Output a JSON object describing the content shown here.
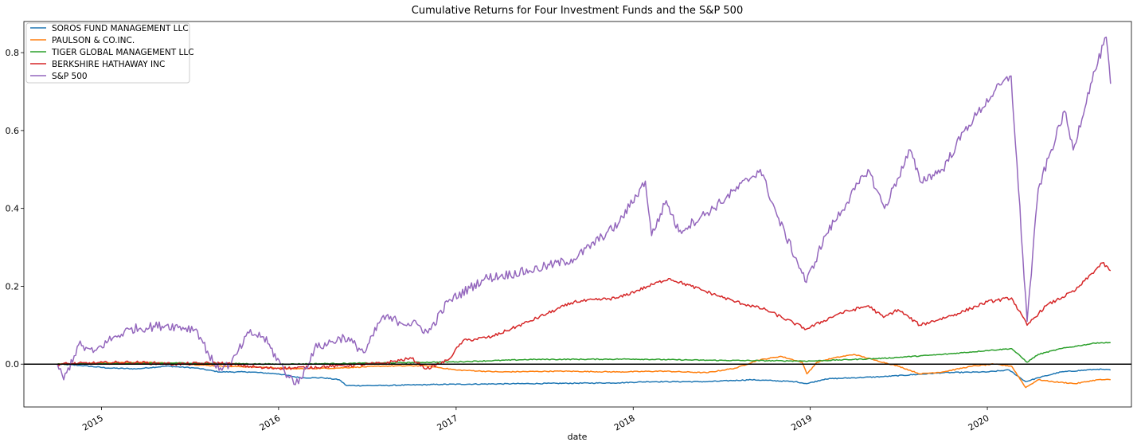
{
  "chart_data": {
    "type": "line",
    "title": "Cumulative Returns for Four Investment Funds and the S&P 500",
    "xlabel": "date",
    "ylabel": "",
    "xlim": [
      "2014-07-25",
      "2020-10-24"
    ],
    "ylim": [
      -0.11,
      0.88
    ],
    "x_ticks": [
      "2015",
      "2016",
      "2017",
      "2018",
      "2019",
      "2020"
    ],
    "x_tick_dates": [
      "2015-01-01",
      "2016-01-01",
      "2017-01-01",
      "2018-01-01",
      "2019-01-01",
      "2020-01-01"
    ],
    "y_ticks": [
      0.0,
      0.2,
      0.4,
      0.6,
      0.8
    ],
    "y_tick_labels": [
      "0.0",
      "0.2",
      "0.4",
      "0.6",
      "0.8"
    ],
    "grid": false,
    "legend_position": "upper-left",
    "reference_line": {
      "y": 0.0,
      "color": "#000000"
    },
    "series": [
      {
        "name": "SOROS FUND MANAGEMENT LLC",
        "color": "#1f77b4",
        "points": [
          [
            "2014-10-02",
            0.0
          ],
          [
            "2014-11-15",
            -0.003
          ],
          [
            "2015-01-15",
            -0.01
          ],
          [
            "2015-03-15",
            -0.012
          ],
          [
            "2015-05-15",
            -0.005
          ],
          [
            "2015-07-15",
            -0.01
          ],
          [
            "2015-09-01",
            -0.02
          ],
          [
            "2015-11-01",
            -0.02
          ],
          [
            "2016-01-01",
            -0.025
          ],
          [
            "2016-02-15",
            -0.035
          ],
          [
            "2016-04-01",
            -0.035
          ],
          [
            "2016-05-05",
            -0.04
          ],
          [
            "2016-05-20",
            -0.055
          ],
          [
            "2016-08-01",
            -0.055
          ],
          [
            "2016-12-01",
            -0.052
          ],
          [
            "2017-06-01",
            -0.05
          ],
          [
            "2017-12-01",
            -0.048
          ],
          [
            "2018-02-01",
            -0.045
          ],
          [
            "2018-06-01",
            -0.045
          ],
          [
            "2018-09-01",
            -0.04
          ],
          [
            "2018-12-01",
            -0.045
          ],
          [
            "2018-12-25",
            -0.05
          ],
          [
            "2019-02-01",
            -0.038
          ],
          [
            "2019-06-01",
            -0.032
          ],
          [
            "2019-10-01",
            -0.022
          ],
          [
            "2020-01-01",
            -0.02
          ],
          [
            "2020-02-15",
            -0.015
          ],
          [
            "2020-03-20",
            -0.045
          ],
          [
            "2020-04-15",
            -0.035
          ],
          [
            "2020-06-01",
            -0.02
          ],
          [
            "2020-08-15",
            -0.013
          ],
          [
            "2020-09-11",
            -0.015
          ]
        ]
      },
      {
        "name": "PAULSON & CO.INC.",
        "color": "#ff7f0e",
        "points": [
          [
            "2014-10-02",
            0.0
          ],
          [
            "2015-01-01",
            0.003
          ],
          [
            "2015-04-01",
            0.005
          ],
          [
            "2015-06-01",
            0.002
          ],
          [
            "2015-09-01",
            -0.005
          ],
          [
            "2015-12-01",
            -0.008
          ],
          [
            "2016-02-01",
            -0.012
          ],
          [
            "2016-05-01",
            -0.01
          ],
          [
            "2016-08-01",
            -0.005
          ],
          [
            "2016-11-01",
            -0.004
          ],
          [
            "2017-01-01",
            -0.015
          ],
          [
            "2017-04-01",
            -0.02
          ],
          [
            "2017-08-01",
            -0.018
          ],
          [
            "2017-12-01",
            -0.02
          ],
          [
            "2018-03-01",
            -0.018
          ],
          [
            "2018-06-01",
            -0.022
          ],
          [
            "2018-08-01",
            -0.01
          ],
          [
            "2018-09-15",
            0.01
          ],
          [
            "2018-11-01",
            0.02
          ],
          [
            "2018-12-15",
            0.005
          ],
          [
            "2018-12-25",
            -0.025
          ],
          [
            "2019-01-15",
            0.005
          ],
          [
            "2019-02-15",
            0.015
          ],
          [
            "2019-04-01",
            0.025
          ],
          [
            "2019-05-15",
            0.01
          ],
          [
            "2019-07-01",
            -0.005
          ],
          [
            "2019-08-15",
            -0.025
          ],
          [
            "2019-10-01",
            -0.02
          ],
          [
            "2019-12-01",
            -0.005
          ],
          [
            "2020-01-15",
            0.0
          ],
          [
            "2020-02-20",
            -0.005
          ],
          [
            "2020-03-20",
            -0.06
          ],
          [
            "2020-04-15",
            -0.04
          ],
          [
            "2020-05-15",
            -0.045
          ],
          [
            "2020-07-01",
            -0.05
          ],
          [
            "2020-08-15",
            -0.04
          ],
          [
            "2020-09-11",
            -0.04
          ]
        ]
      },
      {
        "name": "TIGER GLOBAL MANAGEMENT LLC",
        "color": "#2ca02c",
        "points": [
          [
            "2014-10-02",
            0.0
          ],
          [
            "2015-06-01",
            0.003
          ],
          [
            "2016-01-01",
            0.0
          ],
          [
            "2016-06-01",
            0.002
          ],
          [
            "2017-01-01",
            0.006
          ],
          [
            "2017-06-01",
            0.012
          ],
          [
            "2018-01-01",
            0.013
          ],
          [
            "2018-06-01",
            0.01
          ],
          [
            "2019-01-01",
            0.008
          ],
          [
            "2019-06-01",
            0.015
          ],
          [
            "2019-10-01",
            0.025
          ],
          [
            "2020-01-01",
            0.035
          ],
          [
            "2020-02-20",
            0.04
          ],
          [
            "2020-03-23",
            0.005
          ],
          [
            "2020-04-15",
            0.025
          ],
          [
            "2020-06-01",
            0.04
          ],
          [
            "2020-08-15",
            0.055
          ],
          [
            "2020-09-11",
            0.055
          ]
        ]
      },
      {
        "name": "BERKSHIRE HATHAWAY INC",
        "color": "#d62728",
        "points": [
          [
            "2014-10-02",
            0.0
          ],
          [
            "2015-03-01",
            0.005
          ],
          [
            "2015-06-01",
            0.0
          ],
          [
            "2015-09-01",
            0.003
          ],
          [
            "2015-12-01",
            -0.01
          ],
          [
            "2016-02-01",
            -0.01
          ],
          [
            "2016-05-01",
            -0.005
          ],
          [
            "2016-08-01",
            0.002
          ],
          [
            "2016-10-01",
            0.015
          ],
          [
            "2016-11-01",
            -0.012
          ],
          [
            "2016-12-15",
            0.01
          ],
          [
            "2017-01-15",
            0.06
          ],
          [
            "2017-03-15",
            0.07
          ],
          [
            "2017-06-01",
            0.11
          ],
          [
            "2017-09-01",
            0.16
          ],
          [
            "2017-12-01",
            0.17
          ],
          [
            "2018-02-01",
            0.2
          ],
          [
            "2018-03-15",
            0.22
          ],
          [
            "2018-05-01",
            0.2
          ],
          [
            "2018-06-15",
            0.18
          ],
          [
            "2018-08-01",
            0.16
          ],
          [
            "2018-10-01",
            0.14
          ],
          [
            "2018-12-24",
            0.09
          ],
          [
            "2019-03-01",
            0.13
          ],
          [
            "2019-05-01",
            0.15
          ],
          [
            "2019-06-01",
            0.12
          ],
          [
            "2019-07-01",
            0.14
          ],
          [
            "2019-08-15",
            0.1
          ],
          [
            "2019-11-01",
            0.13
          ],
          [
            "2020-01-01",
            0.16
          ],
          [
            "2020-02-20",
            0.17
          ],
          [
            "2020-03-23",
            0.1
          ],
          [
            "2020-05-01",
            0.15
          ],
          [
            "2020-07-01",
            0.19
          ],
          [
            "2020-08-25",
            0.26
          ],
          [
            "2020-09-11",
            0.24
          ]
        ]
      },
      {
        "name": "S&P 500",
        "color": "#9467bd",
        "points": [
          [
            "2014-10-02",
            0.0
          ],
          [
            "2014-10-15",
            -0.04
          ],
          [
            "2014-11-15",
            0.05
          ],
          [
            "2014-12-15",
            0.03
          ],
          [
            "2015-01-15",
            0.06
          ],
          [
            "2015-03-01",
            0.09
          ],
          [
            "2015-05-15",
            0.1
          ],
          [
            "2015-07-15",
            0.09
          ],
          [
            "2015-08-25",
            -0.01
          ],
          [
            "2015-09-25",
            0.0
          ],
          [
            "2015-11-01",
            0.08
          ],
          [
            "2015-12-01",
            0.07
          ],
          [
            "2016-01-20",
            -0.03
          ],
          [
            "2016-02-11",
            -0.05
          ],
          [
            "2016-03-15",
            0.04
          ],
          [
            "2016-05-15",
            0.07
          ],
          [
            "2016-06-27",
            0.03
          ],
          [
            "2016-08-01",
            0.12
          ],
          [
            "2016-10-15",
            0.1
          ],
          [
            "2016-11-04",
            0.08
          ],
          [
            "2016-12-15",
            0.16
          ],
          [
            "2017-03-01",
            0.22
          ],
          [
            "2017-06-01",
            0.24
          ],
          [
            "2017-09-01",
            0.27
          ],
          [
            "2017-12-01",
            0.36
          ],
          [
            "2018-01-26",
            0.47
          ],
          [
            "2018-02-08",
            0.33
          ],
          [
            "2018-03-10",
            0.42
          ],
          [
            "2018-04-05",
            0.34
          ],
          [
            "2018-06-15",
            0.4
          ],
          [
            "2018-09-20",
            0.5
          ],
          [
            "2018-10-25",
            0.38
          ],
          [
            "2018-12-24",
            0.21
          ],
          [
            "2019-02-01",
            0.33
          ],
          [
            "2019-04-30",
            0.5
          ],
          [
            "2019-06-03",
            0.4
          ],
          [
            "2019-07-26",
            0.55
          ],
          [
            "2019-08-15",
            0.47
          ],
          [
            "2019-10-01",
            0.5
          ],
          [
            "2019-11-15",
            0.6
          ],
          [
            "2020-01-15",
            0.7
          ],
          [
            "2020-02-19",
            0.74
          ],
          [
            "2020-03-23",
            0.11
          ],
          [
            "2020-04-15",
            0.45
          ],
          [
            "2020-06-08",
            0.65
          ],
          [
            "2020-06-26",
            0.55
          ],
          [
            "2020-08-01",
            0.72
          ],
          [
            "2020-09-02",
            0.84
          ],
          [
            "2020-09-11",
            0.72
          ]
        ]
      }
    ]
  }
}
